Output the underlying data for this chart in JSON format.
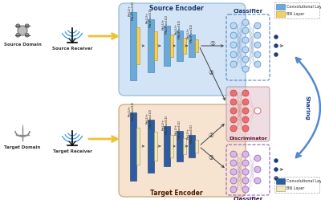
{
  "source_encoder_label": "Source Encoder",
  "target_encoder_label": "Target Encoder",
  "source_domain_label": "Source Domain",
  "source_receiver_label": "Source Receiver",
  "target_domain_label": "Target Domain",
  "target_receiver_label": "Target Receiver",
  "classifier_label": "Classifier",
  "discriminator_label": "Discriminator",
  "sharing_label": "Sharing",
  "conv_layer_label": "Convolutional Layer",
  "bn_layer_label": "BN Layer",
  "source_bg": "#cce0f5",
  "target_bg": "#f5dfc8",
  "disc_bg": "#e8d0d8",
  "conv_color_source": "#6aaad4",
  "bn_color_source": "#f5d060",
  "conv_color_target": "#2e5c9e",
  "bn_color_target": "#f0e8c0",
  "arrow_yellow": "#f0c030",
  "sharing_arrow_color": "#5588cc",
  "node_blue": "#b8d8f0",
  "node_red": "#e87070",
  "node_purple": "#d8b8e8",
  "node_outline_blue": "#5588cc",
  "node_outline_red": "#cc4040",
  "node_outline_purple": "#9060b0",
  "dot_dark": "#1a3a7a"
}
